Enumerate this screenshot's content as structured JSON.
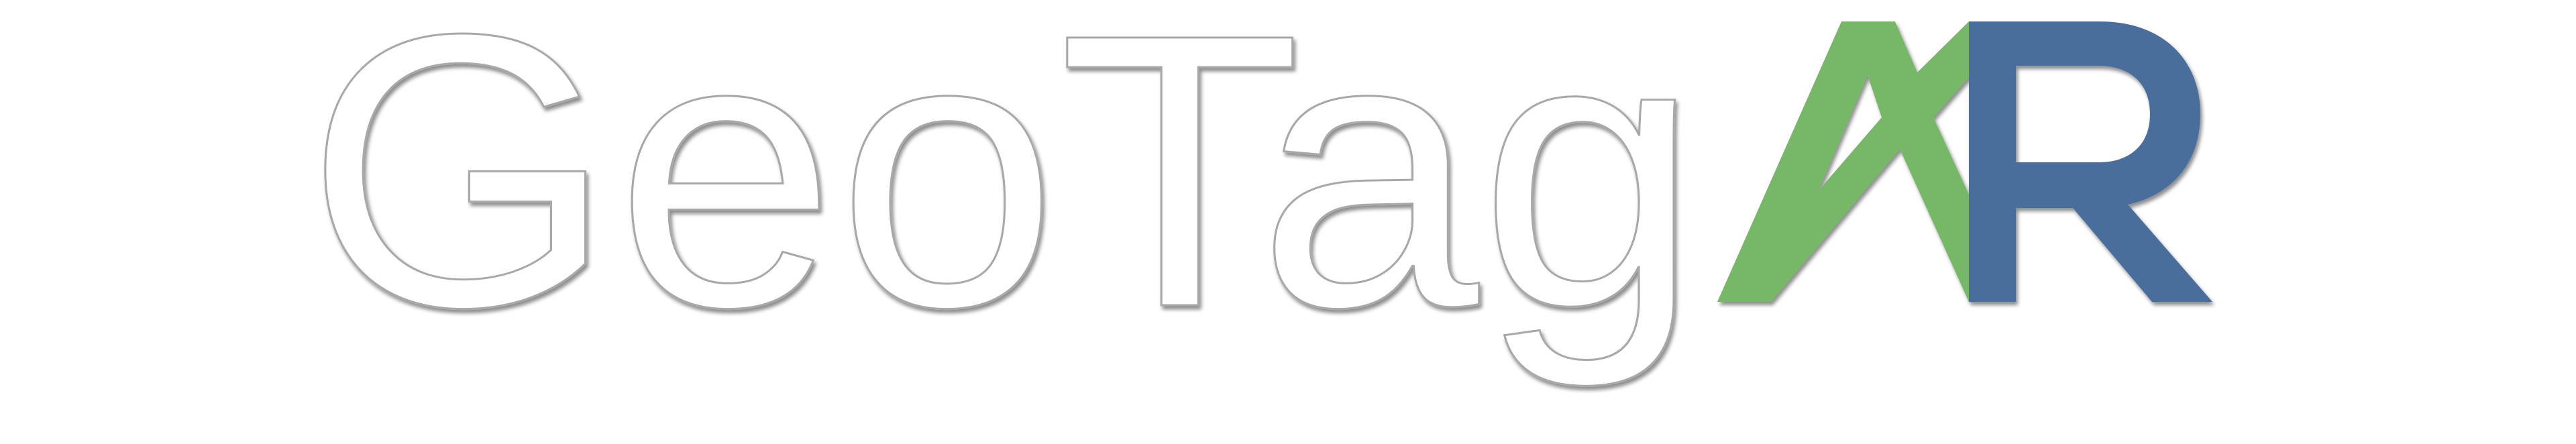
{
  "logo": {
    "text_main": "GeoTag",
    "text_accent": "AR",
    "letter_a": "A",
    "letter_r": "R",
    "colors": {
      "background": "#ffffff",
      "outline_text_fill": "#ffffff",
      "outline_text_stroke": "#a8a8a8",
      "shadow": "#7a7a7a",
      "accent_green": "#76b768",
      "accent_blue": "#4a6e9b"
    }
  }
}
